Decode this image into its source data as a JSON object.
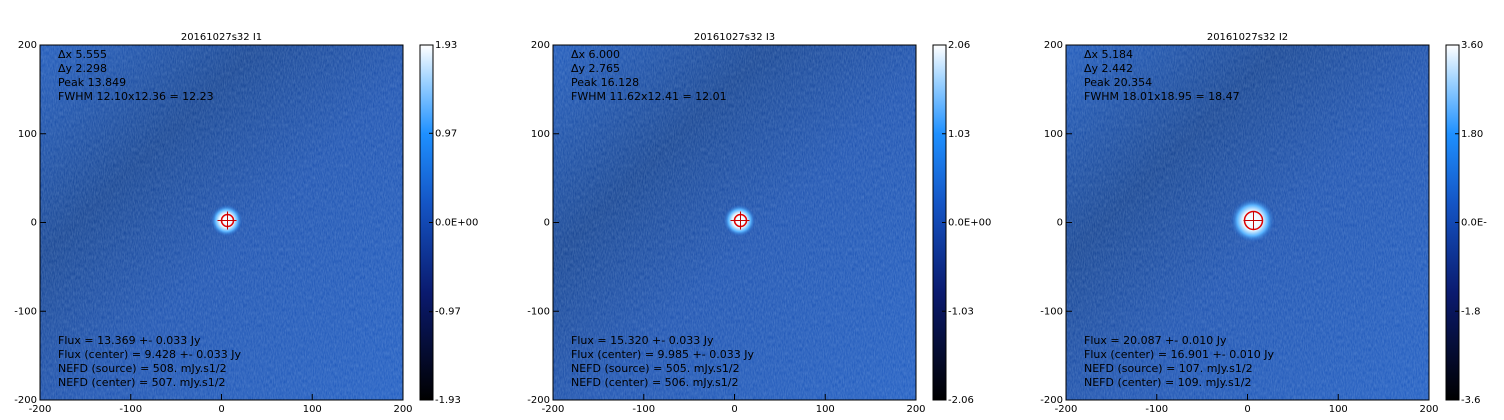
{
  "chart_data": [
    {
      "type": "image",
      "title": "20161027s32 I1",
      "xlim": [
        -200,
        200
      ],
      "ylim": [
        -200,
        200
      ],
      "xticks": [
        -200,
        -100,
        0,
        100,
        200
      ],
      "yticks": [
        -200,
        -100,
        0,
        100,
        200
      ],
      "zlim": [
        -1.93,
        1.93
      ],
      "zticks": [
        -1.93,
        -0.97,
        {
          "value": 0,
          "label": "0.0E+00"
        },
        0.97,
        1.93
      ],
      "annotations": [
        {
          "text": "Δx 5.555",
          "color": "#ffffff"
        },
        {
          "text": "Δy 2.298",
          "color": "#ffffff"
        },
        {
          "text": "Peak 13.849",
          "color": "#ffffff"
        },
        {
          "text": "FWHM 12.10x12.36 = 12.23",
          "color": "#ffffff"
        }
      ],
      "notes": [
        {
          "text": "Flux = 13.369 +- 0.033 Jy",
          "color": "#ff2020"
        },
        {
          "text": "Flux (center) = 9.428 +- 0.033 Jy",
          "color": "#20ff20"
        },
        {
          "text": "NEFD (source) =  508. mJy.s1/2",
          "color": "#ff2020"
        },
        {
          "text": "NEFD (center) =  507. mJy.s1/2",
          "color": "#20ff20"
        }
      ]
    },
    {
      "type": "image",
      "title": "20161027s32 I3",
      "xlim": [
        -200,
        200
      ],
      "ylim": [
        -200,
        200
      ],
      "xticks": [
        -200,
        -100,
        0,
        100,
        200
      ],
      "yticks": [
        -200,
        -100,
        0,
        100,
        200
      ],
      "zlim": [
        -2.06,
        2.06
      ],
      "zticks": [
        -2.06,
        -1.03,
        {
          "value": 0,
          "label": "0.0E+00"
        },
        1.03,
        2.06
      ],
      "annotations": [
        {
          "text": "Δx 6.000",
          "color": "#ffffff"
        },
        {
          "text": "Δy 2.765",
          "color": "#ffffff"
        },
        {
          "text": "Peak 16.128",
          "color": "#ffffff"
        },
        {
          "text": "FWHM 11.62x12.41 = 12.01",
          "color": "#ffffff"
        }
      ],
      "notes": [
        {
          "text": "Flux = 15.320 +- 0.033 Jy",
          "color": "#ff2020"
        },
        {
          "text": "Flux (center) = 9.985 +- 0.033 Jy",
          "color": "#20ff20"
        },
        {
          "text": "NEFD (source) =  505. mJy.s1/2",
          "color": "#ff2020"
        },
        {
          "text": "NEFD (center) =  506. mJy.s1/2",
          "color": "#20ff20"
        }
      ]
    },
    {
      "type": "image",
      "title": "20161027s32 I2",
      "xlim": [
        -200,
        200
      ],
      "ylim": [
        -200,
        200
      ],
      "xticks": [
        -200,
        -100,
        0,
        100,
        200
      ],
      "yticks": [
        -200,
        -100,
        0,
        100,
        200
      ],
      "zlim": [
        -3.6,
        3.6
      ],
      "zticks": [
        {
          "value": -3.6,
          "label": "-3.6"
        },
        {
          "value": -1.8,
          "label": "-1.8"
        },
        {
          "value": 0,
          "label": "0.0E-"
        },
        {
          "value": 1.8,
          "label": "1.80"
        },
        {
          "value": 3.6,
          "label": "3.60"
        }
      ],
      "annotations": [
        {
          "text": "Δx 5.184",
          "color": "#ffffff"
        },
        {
          "text": "Δy 2.442",
          "color": "#ffffff"
        },
        {
          "text": "Peak 20.354",
          "color": "#ffffff"
        },
        {
          "text": "FWHM 18.01x18.95 = 18.47",
          "color": "#ffffff"
        }
      ],
      "notes": [
        {
          "text": "Flux = 20.087 +- 0.010 Jy",
          "color": "#ff2020"
        },
        {
          "text": "Flux (center) = 16.901 +- 0.010 Jy",
          "color": "#20ff20"
        },
        {
          "text": "NEFD (source) =  107. mJy.s1/2",
          "color": "#ff2020"
        },
        {
          "text": "NEFD (center) =  109. mJy.s1/2",
          "color": "#20ff20"
        }
      ]
    }
  ]
}
